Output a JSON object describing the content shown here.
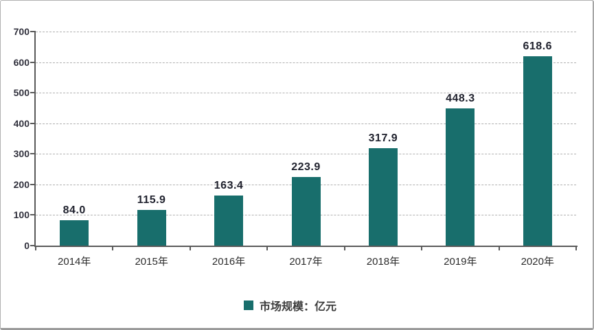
{
  "chart_data": {
    "type": "bar",
    "categories": [
      "2014年",
      "2015年",
      "2016年",
      "2017年",
      "2018年",
      "2019年",
      "2020年"
    ],
    "values": [
      84.0,
      115.9,
      163.4,
      223.9,
      317.9,
      448.3,
      618.6
    ],
    "value_labels": [
      "84.0",
      "115.9",
      "163.4",
      "223.9",
      "317.9",
      "448.3",
      "618.6"
    ],
    "series_name": "市场规模：亿元",
    "title": "",
    "xlabel": "",
    "ylabel": "",
    "ylim": [
      0,
      700
    ],
    "yticks": [
      0,
      100,
      200,
      300,
      400,
      500,
      600,
      700
    ],
    "grid": "horizontal-dashed",
    "legend_position": "bottom-center",
    "bar_color": "#186e6c"
  },
  "legend": {
    "swatch_color": "#186e6c",
    "label": "市场规模：亿元"
  },
  "colors": {
    "bar": "#186e6c",
    "axis_line": "#595959",
    "gridline": "#b0b0b0",
    "y_tick_label": "#30303c",
    "data_label": "#20222e",
    "category_label": "#2d2d2d",
    "frame_border": "#a8a8a8",
    "background": "#ffffff"
  }
}
